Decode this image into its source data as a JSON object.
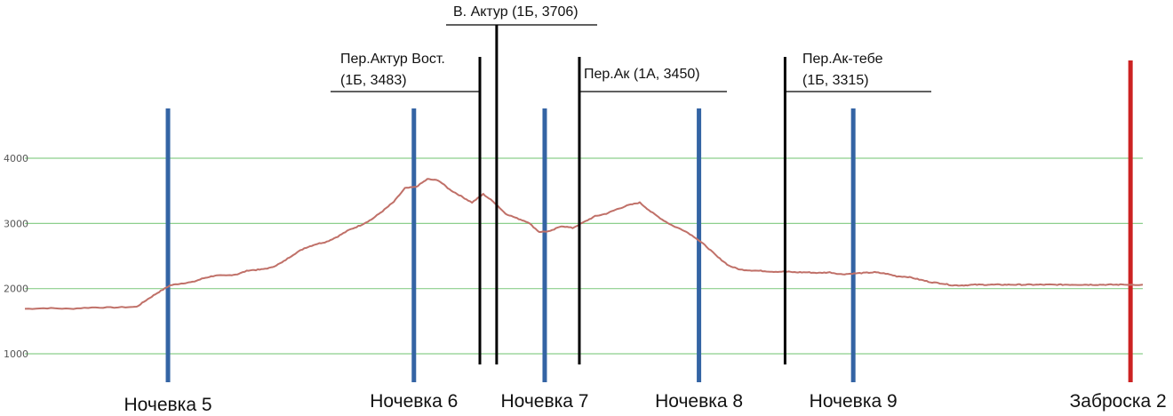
{
  "chart_data": {
    "type": "line",
    "title": "",
    "xlabel": "",
    "ylabel": "",
    "ylim": [
      650,
      4150
    ],
    "xlim": [
      0,
      100
    ],
    "grid": true,
    "yticks": [
      1000,
      2000,
      3000,
      4000
    ],
    "colors": {
      "profile": "#c07068",
      "grid": "#8ccf8c",
      "camp": "#3464a4",
      "drop": "#cc2222",
      "marker": "#000000"
    },
    "series": [
      {
        "name": "",
        "x": [
          0,
          2,
          4,
          6,
          8,
          10,
          11,
          12,
          13,
          14,
          15,
          16,
          17,
          18,
          19,
          20,
          21,
          22,
          23,
          24,
          25,
          26,
          27,
          28,
          29,
          30,
          31,
          32,
          33,
          34,
          35,
          36,
          37,
          38,
          39,
          40,
          41,
          42,
          43,
          44,
          45,
          46,
          47,
          48,
          49,
          50,
          51,
          52,
          53,
          54,
          55,
          56,
          57,
          58,
          59,
          60,
          61,
          62,
          63,
          64,
          65,
          66,
          67,
          68,
          69,
          70,
          71,
          72,
          73,
          74,
          75,
          76,
          77,
          78,
          79,
          80,
          81,
          82,
          83,
          84,
          85,
          86,
          87,
          88,
          89,
          90,
          91,
          92,
          93,
          94,
          95,
          96,
          97,
          98,
          100
        ],
        "values": [
          1690,
          1700,
          1690,
          1710,
          1710,
          1720,
          1840,
          1950,
          2050,
          2080,
          2100,
          2160,
          2200,
          2200,
          2220,
          2280,
          2290,
          2320,
          2400,
          2520,
          2620,
          2680,
          2720,
          2800,
          2900,
          2970,
          3060,
          3190,
          3330,
          3540,
          3560,
          3680,
          3660,
          3520,
          3420,
          3320,
          3450,
          3320,
          3150,
          3080,
          3020,
          2870,
          2880,
          2960,
          2930,
          3020,
          3110,
          3150,
          3220,
          3280,
          3320,
          3180,
          3060,
          2960,
          2890,
          2780,
          2640,
          2480,
          2350,
          2290,
          2280,
          2270,
          2260,
          2260,
          2250,
          2250,
          2240,
          2250,
          2220,
          2230,
          2240,
          2250,
          2230,
          2190,
          2180,
          2140,
          2100,
          2080,
          2050,
          2050,
          2060,
          2060,
          2060,
          2060,
          2060,
          2060,
          2060,
          2060,
          2060,
          2060,
          2060,
          2060,
          2060,
          2060,
          2060
        ]
      }
    ],
    "camps": [
      {
        "label": "Ночевка 5",
        "x": 12.8
      },
      {
        "label": "Ночевка 6",
        "x": 34.8
      },
      {
        "label": "Ночевка 7",
        "x": 46.5
      },
      {
        "label": "Ночевка 8",
        "x": 60.3
      },
      {
        "label": "Ночевка 9",
        "x": 74.1
      }
    ],
    "drop": {
      "label": "Заброска 2",
      "x": 98.9
    },
    "passes": [
      {
        "line1": "В. Актур (1Б, 3706)",
        "line2": "",
        "x": 42.2
      },
      {
        "line1": "Пер.Актур Вост.",
        "line2": "(1Б, 3483)",
        "x": 40.7
      },
      {
        "line1": "Пер.Ак (1А, 3450)",
        "line2": "",
        "x": 49.6
      },
      {
        "line1": "Пер.Ак-тебе",
        "line2": "(1Б, 3315)",
        "x": 68.0
      }
    ]
  }
}
